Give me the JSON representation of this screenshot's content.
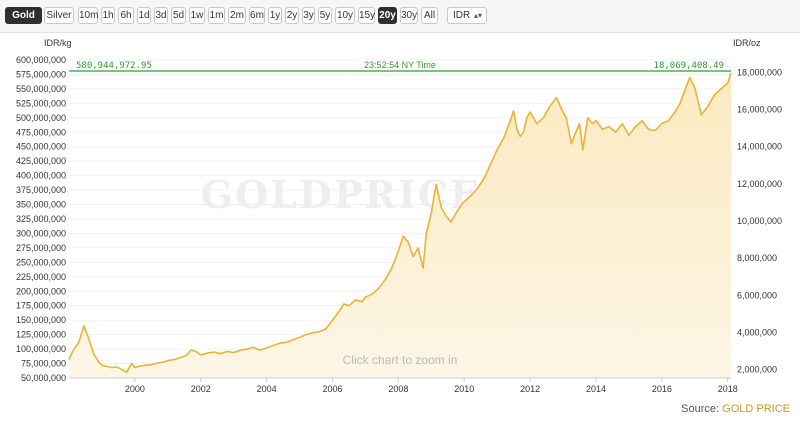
{
  "toolbar": {
    "metals": [
      {
        "label": "Gold",
        "active": true
      },
      {
        "label": "Silver",
        "active": false
      }
    ],
    "ranges": [
      {
        "label": "10m"
      },
      {
        "label": "1h"
      },
      {
        "label": "6h"
      },
      {
        "label": "1d"
      },
      {
        "label": "3d"
      },
      {
        "label": "5d"
      },
      {
        "label": "1w"
      },
      {
        "label": "1m"
      },
      {
        "label": "2m"
      },
      {
        "label": "6m"
      },
      {
        "label": "1y"
      },
      {
        "label": "2y"
      },
      {
        "label": "3y"
      },
      {
        "label": "5y"
      },
      {
        "label": "10y"
      },
      {
        "label": "15y"
      },
      {
        "label": "20y",
        "active": true
      },
      {
        "label": "30y"
      },
      {
        "label": "All"
      }
    ],
    "currency": {
      "selected": "IDR"
    }
  },
  "watermark": "GOLDPRICE.ORG",
  "zoom_hint": "Click chart to zoom in",
  "source": {
    "prefix": "Source: ",
    "brand": "GOLD PRICE"
  },
  "colors": {
    "line": "#eab335",
    "fill_top": "#fbeac0",
    "fill_bottom": "#fdf6e6",
    "current_line": "#2e9e2e",
    "current_text": "#2f9b2f"
  },
  "chart_data": {
    "type": "area",
    "left_axis_label": "IDR/kg",
    "right_axis_label": "IDR/oz",
    "current_value_kg": "580,944,972.95",
    "current_value_oz": "18,069,408.49",
    "current_time": "23:52:54 NY Time",
    "current_kg": 580944972.95,
    "ylim_kg": [
      50000000,
      600000000
    ],
    "ylim_oz": [
      1555175,
      18662100
    ],
    "xlim": [
      1998.0,
      2018.1
    ],
    "y_ticks_kg": [
      {
        "v": 50000000,
        "label": "50,000,000"
      },
      {
        "v": 75000000,
        "label": "75,000,000"
      },
      {
        "v": 100000000,
        "label": "100,000,000"
      },
      {
        "v": 125000000,
        "label": "125,000,000"
      },
      {
        "v": 150000000,
        "label": "150,000,000"
      },
      {
        "v": 175000000,
        "label": "175,000,000"
      },
      {
        "v": 200000000,
        "label": "200,000,000"
      },
      {
        "v": 225000000,
        "label": "225,000,000"
      },
      {
        "v": 250000000,
        "label": "250,000,000"
      },
      {
        "v": 275000000,
        "label": "275,000,000"
      },
      {
        "v": 300000000,
        "label": "300,000,000"
      },
      {
        "v": 325000000,
        "label": "325,000,000"
      },
      {
        "v": 350000000,
        "label": "350,000,000"
      },
      {
        "v": 375000000,
        "label": "375,000,000"
      },
      {
        "v": 400000000,
        "label": "400,000,000"
      },
      {
        "v": 425000000,
        "label": "425,000,000"
      },
      {
        "v": 450000000,
        "label": "450,000,000"
      },
      {
        "v": 475000000,
        "label": "475,000,000"
      },
      {
        "v": 500000000,
        "label": "500,000,000"
      },
      {
        "v": 525000000,
        "label": "525,000,000"
      },
      {
        "v": 550000000,
        "label": "550,000,000"
      },
      {
        "v": 575000000,
        "label": "575,000,000"
      },
      {
        "v": 600000000,
        "label": "600,000,000"
      }
    ],
    "y_ticks_oz": [
      {
        "v": 2000000,
        "label": "2,000,000"
      },
      {
        "v": 4000000,
        "label": "4,000,000"
      },
      {
        "v": 6000000,
        "label": "6,000,000"
      },
      {
        "v": 8000000,
        "label": "8,000,000"
      },
      {
        "v": 10000000,
        "label": "10,000,000"
      },
      {
        "v": 12000000,
        "label": "12,000,000"
      },
      {
        "v": 14000000,
        "label": "14,000,000"
      },
      {
        "v": 16000000,
        "label": "16,000,000"
      },
      {
        "v": 18000000,
        "label": "18,000,000"
      }
    ],
    "x_ticks": [
      {
        "v": 2000,
        "label": "2000"
      },
      {
        "v": 2002,
        "label": "2002"
      },
      {
        "v": 2004,
        "label": "2004"
      },
      {
        "v": 2006,
        "label": "2006"
      },
      {
        "v": 2008,
        "label": "2008"
      },
      {
        "v": 2010,
        "label": "2010"
      },
      {
        "v": 2012,
        "label": "2012"
      },
      {
        "v": 2014,
        "label": "2014"
      },
      {
        "v": 2016,
        "label": "2016"
      },
      {
        "v": 2018,
        "label": "2018"
      }
    ],
    "series": [
      {
        "x": [
          1998.0,
          1998.1,
          1998.3,
          1998.45,
          1998.6,
          1998.75,
          1998.9,
          1999.0,
          1999.15,
          1999.3,
          1999.45,
          1999.6,
          1999.75,
          1999.9,
          2000.0,
          2000.1,
          2000.3,
          2000.5,
          2000.7,
          2000.9,
          2001.0,
          2001.2,
          2001.4,
          2001.55,
          2001.7,
          2001.85,
          2002.0,
          2002.2,
          2002.4,
          2002.6,
          2002.8,
          2003.0,
          2003.2,
          2003.4,
          2003.6,
          2003.8,
          2004.0,
          2004.2,
          2004.4,
          2004.6,
          2004.8,
          2005.0,
          2005.2,
          2005.4,
          2005.6,
          2005.8,
          2006.0,
          2006.2,
          2006.35,
          2006.5,
          2006.7,
          2006.9,
          2007.0,
          2007.2,
          2007.4,
          2007.6,
          2007.8,
          2008.0,
          2008.15,
          2008.3,
          2008.45,
          2008.6,
          2008.75,
          2008.85,
          2009.0,
          2009.15,
          2009.3,
          2009.45,
          2009.6,
          2009.75,
          2009.9,
          2010.0,
          2010.2,
          2010.4,
          2010.6,
          2010.8,
          2011.0,
          2011.2,
          2011.4,
          2011.5,
          2011.6,
          2011.7,
          2011.8,
          2011.9,
          2012.0,
          2012.2,
          2012.4,
          2012.6,
          2012.8,
          2013.0,
          2013.1,
          2013.25,
          2013.35,
          2013.5,
          2013.6,
          2013.75,
          2013.9,
          2014.0,
          2014.2,
          2014.4,
          2014.6,
          2014.8,
          2015.0,
          2015.2,
          2015.4,
          2015.6,
          2015.8,
          2016.0,
          2016.2,
          2016.4,
          2016.55,
          2016.7,
          2016.85,
          2017.0,
          2017.2,
          2017.4,
          2017.6,
          2017.8,
          2018.0,
          2018.1
        ],
        "values_kg": [
          82000000,
          95000000,
          112000000,
          140000000,
          118000000,
          92000000,
          78000000,
          72000000,
          70000000,
          68000000,
          69000000,
          65000000,
          60000000,
          75000000,
          68000000,
          70000000,
          72000000,
          73000000,
          76000000,
          78000000,
          80000000,
          82000000,
          86000000,
          88000000,
          98000000,
          96000000,
          90000000,
          93000000,
          95000000,
          92000000,
          96000000,
          94000000,
          98000000,
          100000000,
          103000000,
          98000000,
          102000000,
          106000000,
          110000000,
          112000000,
          116000000,
          120000000,
          125000000,
          128000000,
          130000000,
          135000000,
          150000000,
          165000000,
          178000000,
          175000000,
          185000000,
          182000000,
          190000000,
          195000000,
          205000000,
          220000000,
          240000000,
          270000000,
          295000000,
          285000000,
          260000000,
          275000000,
          240000000,
          300000000,
          335000000,
          385000000,
          345000000,
          330000000,
          320000000,
          335000000,
          348000000,
          355000000,
          365000000,
          378000000,
          395000000,
          420000000,
          445000000,
          465000000,
          495000000,
          512000000,
          480000000,
          468000000,
          475000000,
          500000000,
          510000000,
          490000000,
          500000000,
          520000000,
          535000000,
          510000000,
          500000000,
          455000000,
          470000000,
          490000000,
          445000000,
          500000000,
          490000000,
          495000000,
          480000000,
          485000000,
          475000000,
          490000000,
          470000000,
          485000000,
          495000000,
          480000000,
          478000000,
          490000000,
          495000000,
          510000000,
          525000000,
          548000000,
          570000000,
          552000000,
          505000000,
          520000000,
          540000000,
          550000000,
          560000000,
          578000000
        ]
      }
    ]
  }
}
